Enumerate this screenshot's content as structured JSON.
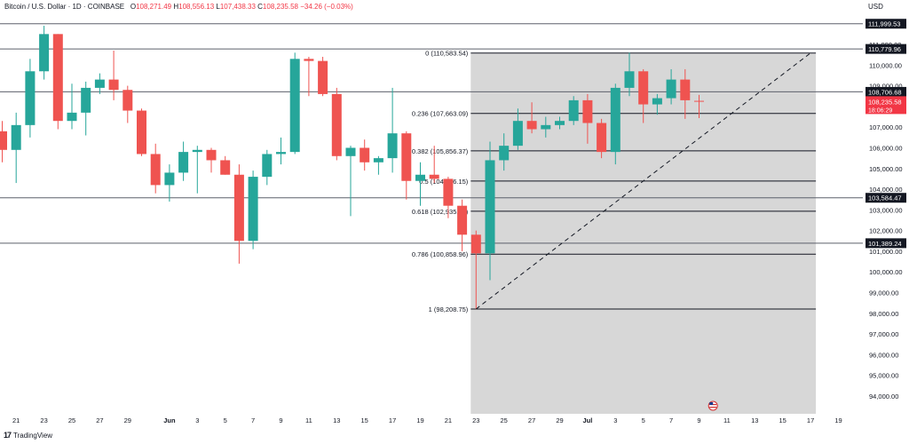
{
  "header": {
    "symbol": "Bitcoin / U.S. Dollar · 1D · COINBASE",
    "o_label": "O",
    "o_value": "108,271.49",
    "h_label": "H",
    "h_value": "108,556.13",
    "l_label": "L",
    "l_value": "107,438.33",
    "c_label": "C",
    "c_value": "108,235.58",
    "change": "−34.26 (−0.03%)"
  },
  "currency_label": "USD",
  "brand": {
    "logo": "17",
    "name": "TradingView"
  },
  "colors": {
    "up": "#26a69a",
    "down": "#ef5350",
    "fib_zone": "#d5d5d5",
    "label_bg": "#131722",
    "current": "#f23645"
  },
  "chart_data": {
    "type": "candlestick",
    "interval": "1D",
    "exchange": "COINBASE",
    "y_axis": {
      "scale": "linear",
      "min": 93000,
      "max": 112500,
      "side": "right"
    },
    "y_ticks": [
      "111,000.00",
      "110,000.00",
      "109,000.00",
      "108,000.00",
      "107,000.00",
      "106,000.00",
      "105,000.00",
      "104,000.00",
      "103,000.00",
      "102,000.00",
      "101,000.00",
      "100,000.00",
      "99,000.00",
      "98,000.00",
      "97,000.00",
      "96,000.00",
      "95,000.00",
      "94,000.00"
    ],
    "x_ticks": [
      {
        "label": "19",
        "bar": -1
      },
      {
        "label": "21",
        "bar": 1
      },
      {
        "label": "23",
        "bar": 3
      },
      {
        "label": "25",
        "bar": 5
      },
      {
        "label": "27",
        "bar": 7
      },
      {
        "label": "29",
        "bar": 9
      },
      {
        "label": "Jun",
        "bar": 12
      },
      {
        "label": "3",
        "bar": 14
      },
      {
        "label": "5",
        "bar": 16
      },
      {
        "label": "7",
        "bar": 18
      },
      {
        "label": "9",
        "bar": 20
      },
      {
        "label": "11",
        "bar": 22
      },
      {
        "label": "13",
        "bar": 24
      },
      {
        "label": "15",
        "bar": 26
      },
      {
        "label": "17",
        "bar": 28
      },
      {
        "label": "19",
        "bar": 30
      },
      {
        "label": "21",
        "bar": 32
      },
      {
        "label": "23",
        "bar": 34
      },
      {
        "label": "25",
        "bar": 36
      },
      {
        "label": "27",
        "bar": 38
      },
      {
        "label": "29",
        "bar": 40
      },
      {
        "label": "Jul",
        "bar": 42
      },
      {
        "label": "3",
        "bar": 44
      },
      {
        "label": "5",
        "bar": 46
      },
      {
        "label": "7",
        "bar": 48
      },
      {
        "label": "9",
        "bar": 50
      },
      {
        "label": "11",
        "bar": 52
      },
      {
        "label": "13",
        "bar": 54
      },
      {
        "label": "15",
        "bar": 56
      },
      {
        "label": "17",
        "bar": 58
      },
      {
        "label": "19",
        "bar": 60
      }
    ],
    "candles": [
      {
        "o": 106800,
        "h": 107300,
        "l": 105300,
        "c": 105900
      },
      {
        "o": 105900,
        "h": 107700,
        "l": 104300,
        "c": 107100
      },
      {
        "o": 107100,
        "h": 110300,
        "l": 106500,
        "c": 109700
      },
      {
        "o": 109700,
        "h": 111900,
        "l": 109300,
        "c": 111500
      },
      {
        "o": 111500,
        "h": 111500,
        "l": 106900,
        "c": 107300
      },
      {
        "o": 107300,
        "h": 109100,
        "l": 106900,
        "c": 107700
      },
      {
        "o": 107700,
        "h": 109200,
        "l": 106600,
        "c": 108900
      },
      {
        "o": 108900,
        "h": 109600,
        "l": 108600,
        "c": 109300
      },
      {
        "o": 109300,
        "h": 110700,
        "l": 108300,
        "c": 108800
      },
      {
        "o": 108800,
        "h": 109000,
        "l": 107200,
        "c": 107800
      },
      {
        "o": 107800,
        "h": 107900,
        "l": 105600,
        "c": 105700
      },
      {
        "o": 105700,
        "h": 106200,
        "l": 103800,
        "c": 104200
      },
      {
        "o": 104200,
        "h": 105200,
        "l": 103400,
        "c": 104800
      },
      {
        "o": 104800,
        "h": 106300,
        "l": 104400,
        "c": 105800
      },
      {
        "o": 105800,
        "h": 106100,
        "l": 103800,
        "c": 105900
      },
      {
        "o": 105900,
        "h": 106000,
        "l": 104800,
        "c": 105400
      },
      {
        "o": 105400,
        "h": 105600,
        "l": 104700,
        "c": 104700
      },
      {
        "o": 104700,
        "h": 105200,
        "l": 100400,
        "c": 101500
      },
      {
        "o": 101500,
        "h": 104900,
        "l": 101100,
        "c": 104600
      },
      {
        "o": 104600,
        "h": 105900,
        "l": 104200,
        "c": 105700
      },
      {
        "o": 105700,
        "h": 106500,
        "l": 105200,
        "c": 105800
      },
      {
        "o": 105800,
        "h": 110600,
        "l": 105700,
        "c": 110300
      },
      {
        "o": 110300,
        "h": 110400,
        "l": 108500,
        "c": 110200
      },
      {
        "o": 110200,
        "h": 110400,
        "l": 108500,
        "c": 108600
      },
      {
        "o": 108600,
        "h": 108900,
        "l": 105400,
        "c": 105600
      },
      {
        "o": 105600,
        "h": 106100,
        "l": 102700,
        "c": 106000
      },
      {
        "o": 106000,
        "h": 106400,
        "l": 104900,
        "c": 105300
      },
      {
        "o": 105300,
        "h": 105600,
        "l": 104700,
        "c": 105500
      },
      {
        "o": 105500,
        "h": 108900,
        "l": 104800,
        "c": 106700
      },
      {
        "o": 106700,
        "h": 106800,
        "l": 103500,
        "c": 104400
      },
      {
        "o": 104400,
        "h": 105300,
        "l": 103200,
        "c": 104700
      },
      {
        "o": 104700,
        "h": 106100,
        "l": 104300,
        "c": 104500
      },
      {
        "o": 104500,
        "h": 104600,
        "l": 102600,
        "c": 103200
      },
      {
        "o": 103200,
        "h": 103500,
        "l": 101000,
        "c": 101800
      },
      {
        "o": 101800,
        "h": 102000,
        "l": 98200,
        "c": 100900
      },
      {
        "o": 100900,
        "h": 106300,
        "l": 99600,
        "c": 105400
      },
      {
        "o": 105400,
        "h": 106700,
        "l": 104900,
        "c": 106100
      },
      {
        "o": 106100,
        "h": 107900,
        "l": 105900,
        "c": 107300
      },
      {
        "o": 107300,
        "h": 108200,
        "l": 106700,
        "c": 106900
      },
      {
        "o": 106900,
        "h": 107500,
        "l": 106500,
        "c": 107100
      },
      {
        "o": 107100,
        "h": 107500,
        "l": 106900,
        "c": 107300
      },
      {
        "o": 107300,
        "h": 108500,
        "l": 107100,
        "c": 108300
      },
      {
        "o": 108300,
        "h": 108600,
        "l": 106200,
        "c": 107200
      },
      {
        "o": 107200,
        "h": 107400,
        "l": 105500,
        "c": 105800
      },
      {
        "o": 105800,
        "h": 109100,
        "l": 105200,
        "c": 108900
      },
      {
        "o": 108900,
        "h": 110600,
        "l": 108500,
        "c": 109700
      },
      {
        "o": 109700,
        "h": 109800,
        "l": 107200,
        "c": 108100
      },
      {
        "o": 108100,
        "h": 108600,
        "l": 107600,
        "c": 108400
      },
      {
        "o": 108400,
        "h": 109800,
        "l": 108100,
        "c": 109300
      },
      {
        "o": 109300,
        "h": 109800,
        "l": 107400,
        "c": 108300
      },
      {
        "o": 108271,
        "h": 108556,
        "l": 107438,
        "c": 108236
      }
    ],
    "fib_retracement": {
      "start_bar": 34,
      "end_bar": 58,
      "low_bar": 34,
      "high_bar": 58,
      "levels": [
        {
          "label": "0 (110,583.54)",
          "price": 110583.54
        },
        {
          "label": "0.236 (107,663.09)",
          "price": 107663.09
        },
        {
          "label": "0.382 (105,856.37)",
          "price": 105856.37
        },
        {
          "label": "0.5 (104,396.15)",
          "price": 104396.15
        },
        {
          "label": "0.618 (102,935.92)",
          "price": 102935.92
        },
        {
          "label": "0.786 (100,858.96)",
          "price": 100858.96
        },
        {
          "label": "1 (98,208.75)",
          "price": 98208.75
        }
      ]
    },
    "horizontal_lines": [
      {
        "label": "111,999.53",
        "price": 111999.53
      },
      {
        "label": "110,779.96",
        "price": 110779.96
      },
      {
        "label": "108,706.68",
        "price": 108706.68
      },
      {
        "label": "103,584.47",
        "price": 103584.47
      },
      {
        "label": "101,389.24",
        "price": 101389.24
      }
    ],
    "current_price": {
      "label": "108,235.58",
      "price": 108235.58,
      "countdown": "18:06:29"
    }
  }
}
